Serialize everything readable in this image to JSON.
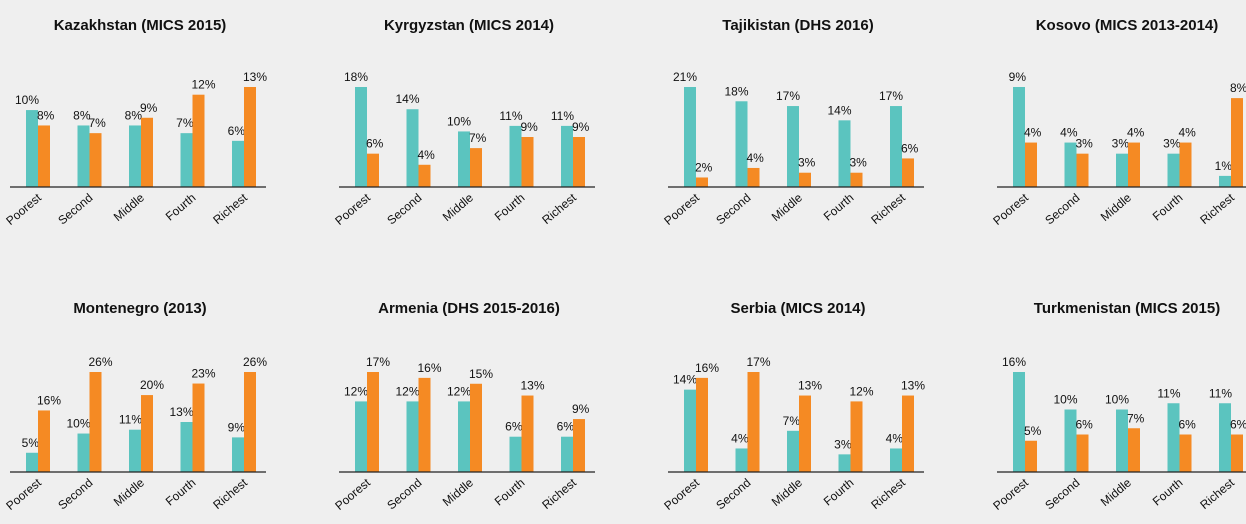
{
  "chart_data": [
    {
      "type": "bar",
      "title": "Kazakhstan (MICS 2015)",
      "categories": [
        "Poorest",
        "Second",
        "Middle",
        "Fourth",
        "Richest"
      ],
      "series": [
        {
          "color": "#5bc4bf",
          "values": [
            10,
            8,
            8,
            7,
            6
          ],
          "value_labels": [
            "10%",
            "8%",
            "8%",
            "7%",
            "6%"
          ]
        },
        {
          "color": "#f58a23",
          "values": [
            8,
            7,
            9,
            12,
            13
          ],
          "value_labels": [
            "8%",
            "7%",
            "9%",
            "12%",
            "13%"
          ]
        }
      ]
    },
    {
      "type": "bar",
      "title": "Kyrgyzstan (MICS 2014)",
      "categories": [
        "Poorest",
        "Second",
        "Middle",
        "Fourth",
        "Richest"
      ],
      "series": [
        {
          "color": "#5bc4bf",
          "values": [
            18,
            14,
            10,
            11,
            11
          ],
          "value_labels": [
            "18%",
            "14%",
            "10%",
            "11%",
            "11%"
          ]
        },
        {
          "color": "#f58a23",
          "values": [
            6,
            4,
            7,
            9,
            9
          ],
          "value_labels": [
            "6%",
            "4%",
            "7%",
            "9%",
            "9%"
          ]
        }
      ]
    },
    {
      "type": "bar",
      "title": "Tajikistan (DHS 2016)",
      "categories": [
        "Poorest",
        "Second",
        "Middle",
        "Fourth",
        "Richest"
      ],
      "series": [
        {
          "color": "#5bc4bf",
          "values": [
            21,
            18,
            17,
            14,
            17
          ],
          "value_labels": [
            "21%",
            "18%",
            "17%",
            "14%",
            "17%"
          ]
        },
        {
          "color": "#f58a23",
          "values": [
            2,
            4,
            3,
            3,
            6
          ],
          "value_labels": [
            "2%",
            "4%",
            "3%",
            "3%",
            "6%"
          ]
        }
      ]
    },
    {
      "type": "bar",
      "title": "Kosovo (MICS 2013-2014)",
      "categories": [
        "Poorest",
        "Second",
        "Middle",
        "Fourth",
        "Richest"
      ],
      "series": [
        {
          "color": "#5bc4bf",
          "values": [
            9,
            4,
            3,
            3,
            1
          ],
          "value_labels": [
            "9%",
            "4%",
            "3%",
            "3%",
            "1%"
          ]
        },
        {
          "color": "#f58a23",
          "values": [
            4,
            3,
            4,
            4,
            8
          ],
          "value_labels": [
            "4%",
            "3%",
            "4%",
            "4%",
            "8%"
          ]
        }
      ]
    },
    {
      "type": "bar",
      "title": "Montenegro (2013)",
      "categories": [
        "Poorest",
        "Second",
        "Middle",
        "Fourth",
        "Richest"
      ],
      "series": [
        {
          "color": "#5bc4bf",
          "values": [
            5,
            10,
            11,
            13,
            9
          ],
          "value_labels": [
            "5%",
            "10%",
            "11%",
            "13%",
            "9%"
          ]
        },
        {
          "color": "#f58a23",
          "values": [
            16,
            26,
            20,
            23,
            26
          ],
          "value_labels": [
            "16%",
            "26%",
            "20%",
            "23%",
            "26%"
          ]
        }
      ]
    },
    {
      "type": "bar",
      "title": "Armenia (DHS 2015-2016)",
      "categories": [
        "Poorest",
        "Second",
        "Middle",
        "Fourth",
        "Richest"
      ],
      "series": [
        {
          "color": "#5bc4bf",
          "values": [
            12,
            12,
            12,
            6,
            6
          ],
          "value_labels": [
            "12%",
            "12%",
            "12%",
            "6%",
            "6%"
          ]
        },
        {
          "color": "#f58a23",
          "values": [
            17,
            16,
            15,
            13,
            9
          ],
          "value_labels": [
            "17%",
            "16%",
            "15%",
            "13%",
            "9%"
          ]
        }
      ]
    },
    {
      "type": "bar",
      "title": "Serbia (MICS 2014)",
      "categories": [
        "Poorest",
        "Second",
        "Middle",
        "Fourth",
        "Richest"
      ],
      "series": [
        {
          "color": "#5bc4bf",
          "values": [
            14,
            4,
            7,
            3,
            4
          ],
          "value_labels": [
            "14%",
            "4%",
            "7%",
            "3%",
            "4%"
          ]
        },
        {
          "color": "#f58a23",
          "values": [
            16,
            17,
            13,
            12,
            13
          ],
          "value_labels": [
            "16%",
            "17%",
            "13%",
            "12%",
            "13%"
          ]
        }
      ]
    },
    {
      "type": "bar",
      "title": "Turkmenistan (MICS 2015)",
      "categories": [
        "Poorest",
        "Second",
        "Middle",
        "Fourth",
        "Richest"
      ],
      "series": [
        {
          "color": "#5bc4bf",
          "values": [
            16,
            10,
            10,
            11,
            11
          ],
          "value_labels": [
            "16%",
            "10%",
            "10%",
            "11%",
            "11%"
          ]
        },
        {
          "color": "#f58a23",
          "values": [
            5,
            6,
            7,
            6,
            6
          ],
          "value_labels": [
            "5%",
            "6%",
            "7%",
            "6%",
            "6%"
          ]
        }
      ]
    }
  ]
}
